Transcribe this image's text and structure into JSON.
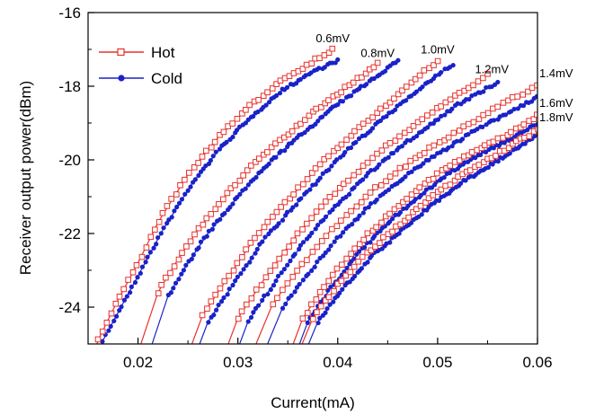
{
  "chart_data": {
    "type": "line",
    "xlabel": "Current(mA)",
    "ylabel": "Receiver output power(dBm)",
    "xlim": [
      0.015,
      0.06
    ],
    "ylim": [
      -25,
      -16
    ],
    "xticks": [
      0.02,
      0.03,
      0.04,
      0.05,
      0.06
    ],
    "xtick_labels": [
      "0.02",
      "0.03",
      "0.04",
      "0.05",
      "0.06"
    ],
    "yticks": [
      -24,
      -22,
      -20,
      -18,
      -16
    ],
    "ytick_labels": [
      "-24",
      "-22",
      "-20",
      "-18",
      "-16"
    ],
    "legend_position": "top-left",
    "colors": {
      "hot": "#e8302a",
      "cold": "#1a22c8"
    },
    "series": [
      {
        "name": "Hot",
        "marker": "open-square",
        "color": "#e8302a"
      },
      {
        "name": "Cold",
        "marker": "filled-circle",
        "color": "#1a22c8"
      }
    ],
    "curves": [
      {
        "label": "0.6mV",
        "hot": {
          "x": [
            0.016,
            0.018,
            0.02,
            0.022,
            0.025,
            0.028,
            0.031,
            0.034,
            0.037,
            0.0395
          ],
          "y": [
            -24.9,
            -23.8,
            -22.8,
            -21.7,
            -20.4,
            -19.4,
            -18.6,
            -17.9,
            -17.4,
            -17.0
          ]
        },
        "cold": {
          "x": [
            0.0165,
            0.0185,
            0.0205,
            0.0225,
            0.0255,
            0.0285,
            0.0315,
            0.0345,
            0.0375,
            0.04
          ],
          "y": [
            -24.9,
            -23.9,
            -22.9,
            -21.9,
            -20.6,
            -19.6,
            -18.8,
            -18.1,
            -17.6,
            -17.3
          ]
        }
      },
      {
        "label": "0.8mV",
        "hot": {
          "x": [
            0.022,
            0.024,
            0.026,
            0.029,
            0.032,
            0.035,
            0.038,
            0.041,
            0.044
          ],
          "y": [
            -23.6,
            -22.7,
            -21.9,
            -20.9,
            -20.0,
            -19.3,
            -18.6,
            -18.0,
            -17.4
          ]
        },
        "cold": {
          "x": [
            0.023,
            0.025,
            0.027,
            0.03,
            0.033,
            0.036,
            0.039,
            0.042,
            0.046
          ],
          "y": [
            -23.7,
            -22.8,
            -22.0,
            -21.0,
            -20.1,
            -19.4,
            -18.7,
            -18.1,
            -17.3
          ]
        }
      },
      {
        "label": "1.0mV",
        "hot": {
          "x": [
            0.0265,
            0.029,
            0.032,
            0.035,
            0.038,
            0.041,
            0.044,
            0.047,
            0.05
          ],
          "y": [
            -24.2,
            -23.2,
            -22.0,
            -21.1,
            -20.2,
            -19.4,
            -18.7,
            -18.0,
            -17.3
          ]
        },
        "cold": {
          "x": [
            0.027,
            0.0295,
            0.0325,
            0.0355,
            0.0385,
            0.0415,
            0.0445,
            0.0475,
            0.0515
          ],
          "y": [
            -24.4,
            -23.4,
            -22.2,
            -21.3,
            -20.4,
            -19.6,
            -18.9,
            -18.2,
            -17.4
          ]
        }
      },
      {
        "label": "1.2mV",
        "hot": {
          "x": [
            0.03,
            0.033,
            0.036,
            0.039,
            0.042,
            0.045,
            0.048,
            0.051,
            0.055
          ],
          "y": [
            -24.3,
            -23.1,
            -22.0,
            -21.1,
            -20.3,
            -19.6,
            -19.0,
            -18.4,
            -17.7
          ]
        },
        "cold": {
          "x": [
            0.031,
            0.034,
            0.037,
            0.04,
            0.043,
            0.046,
            0.049,
            0.052,
            0.056
          ],
          "y": [
            -24.4,
            -23.2,
            -22.1,
            -21.2,
            -20.4,
            -19.7,
            -19.1,
            -18.5,
            -17.9
          ]
        }
      },
      {
        "label": "1.4mV",
        "hot": {
          "x": [
            0.0335,
            0.036,
            0.039,
            0.042,
            0.045,
            0.048,
            0.051,
            0.054,
            0.057,
            0.06
          ],
          "y": [
            -23.9,
            -23.0,
            -22.0,
            -21.2,
            -20.5,
            -19.9,
            -19.4,
            -18.9,
            -18.4,
            -18.0
          ]
        },
        "cold": {
          "x": [
            0.0345,
            0.037,
            0.04,
            0.043,
            0.046,
            0.049,
            0.052,
            0.055,
            0.058,
            0.06
          ],
          "y": [
            -24.0,
            -23.1,
            -22.1,
            -21.3,
            -20.6,
            -20.0,
            -19.5,
            -19.0,
            -18.6,
            -18.3
          ]
        }
      },
      {
        "label": "1.6mV",
        "hot": {
          "x": [
            0.0365,
            0.039,
            0.042,
            0.045,
            0.048,
            0.051,
            0.054,
            0.057,
            0.06
          ],
          "y": [
            -24.3,
            -23.3,
            -22.3,
            -21.5,
            -20.8,
            -20.2,
            -19.7,
            -19.3,
            -18.8
          ]
        },
        "cold": {
          "x": [
            0.037,
            0.0395,
            0.0425,
            0.0455,
            0.0485,
            0.0515,
            0.0545,
            0.0575,
            0.06
          ],
          "y": [
            -24.4,
            -23.4,
            -22.4,
            -21.6,
            -20.9,
            -20.3,
            -19.8,
            -19.4,
            -19.0
          ]
        }
      },
      {
        "label": "1.8mV",
        "hot": {
          "x": [
            0.0375,
            0.04,
            0.043,
            0.046,
            0.049,
            0.052,
            0.055,
            0.058,
            0.06
          ],
          "y": [
            -24.3,
            -23.4,
            -22.5,
            -21.8,
            -21.1,
            -20.5,
            -20.0,
            -19.5,
            -19.2
          ]
        },
        "cold": {
          "x": [
            0.038,
            0.0405,
            0.0435,
            0.0465,
            0.0495,
            0.0525,
            0.0555,
            0.0585,
            0.06
          ],
          "y": [
            -24.4,
            -23.5,
            -22.6,
            -21.9,
            -21.2,
            -20.6,
            -20.1,
            -19.6,
            -19.3
          ]
        }
      }
    ]
  }
}
